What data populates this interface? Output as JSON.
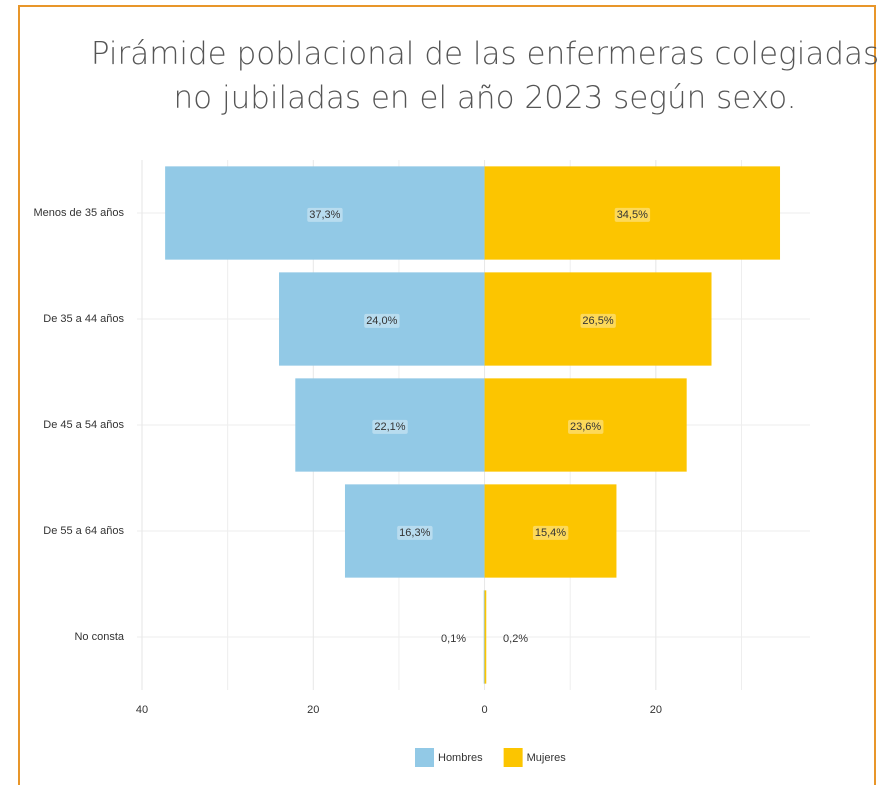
{
  "chart_data": {
    "type": "pyramid",
    "title": "Pirámide poblacional de las enfermeras colegiadas no jubiladas en el año 2023 según sexo.",
    "categories": [
      "Menos de 35 años",
      "De 35 a 44 años",
      "De 45 a 54 años",
      "De 55 a 64 años",
      "No consta"
    ],
    "series": [
      {
        "name": "Hombres",
        "color": "#92c9e6",
        "side": "left",
        "values": [
          37.3,
          24.0,
          22.1,
          16.3,
          0.1
        ],
        "value_labels": [
          "37,3%",
          "24,0%",
          "22,1%",
          "16,3%",
          "0,1%"
        ]
      },
      {
        "name": "Mujeres",
        "color": "#fcc500",
        "side": "right",
        "values": [
          34.5,
          26.5,
          23.6,
          15.4,
          0.2
        ],
        "value_labels": [
          "34,5%",
          "26,5%",
          "23,6%",
          "15,4%",
          "0,2%"
        ]
      }
    ],
    "xlim": [
      -40,
      38
    ],
    "xticks": [
      {
        "value": -40,
        "label": "40"
      },
      {
        "value": -20,
        "label": "20"
      },
      0,
      20
    ],
    "minor_xticks": [
      -30,
      -10,
      10,
      30
    ],
    "grid": true,
    "legend": "bottom"
  }
}
